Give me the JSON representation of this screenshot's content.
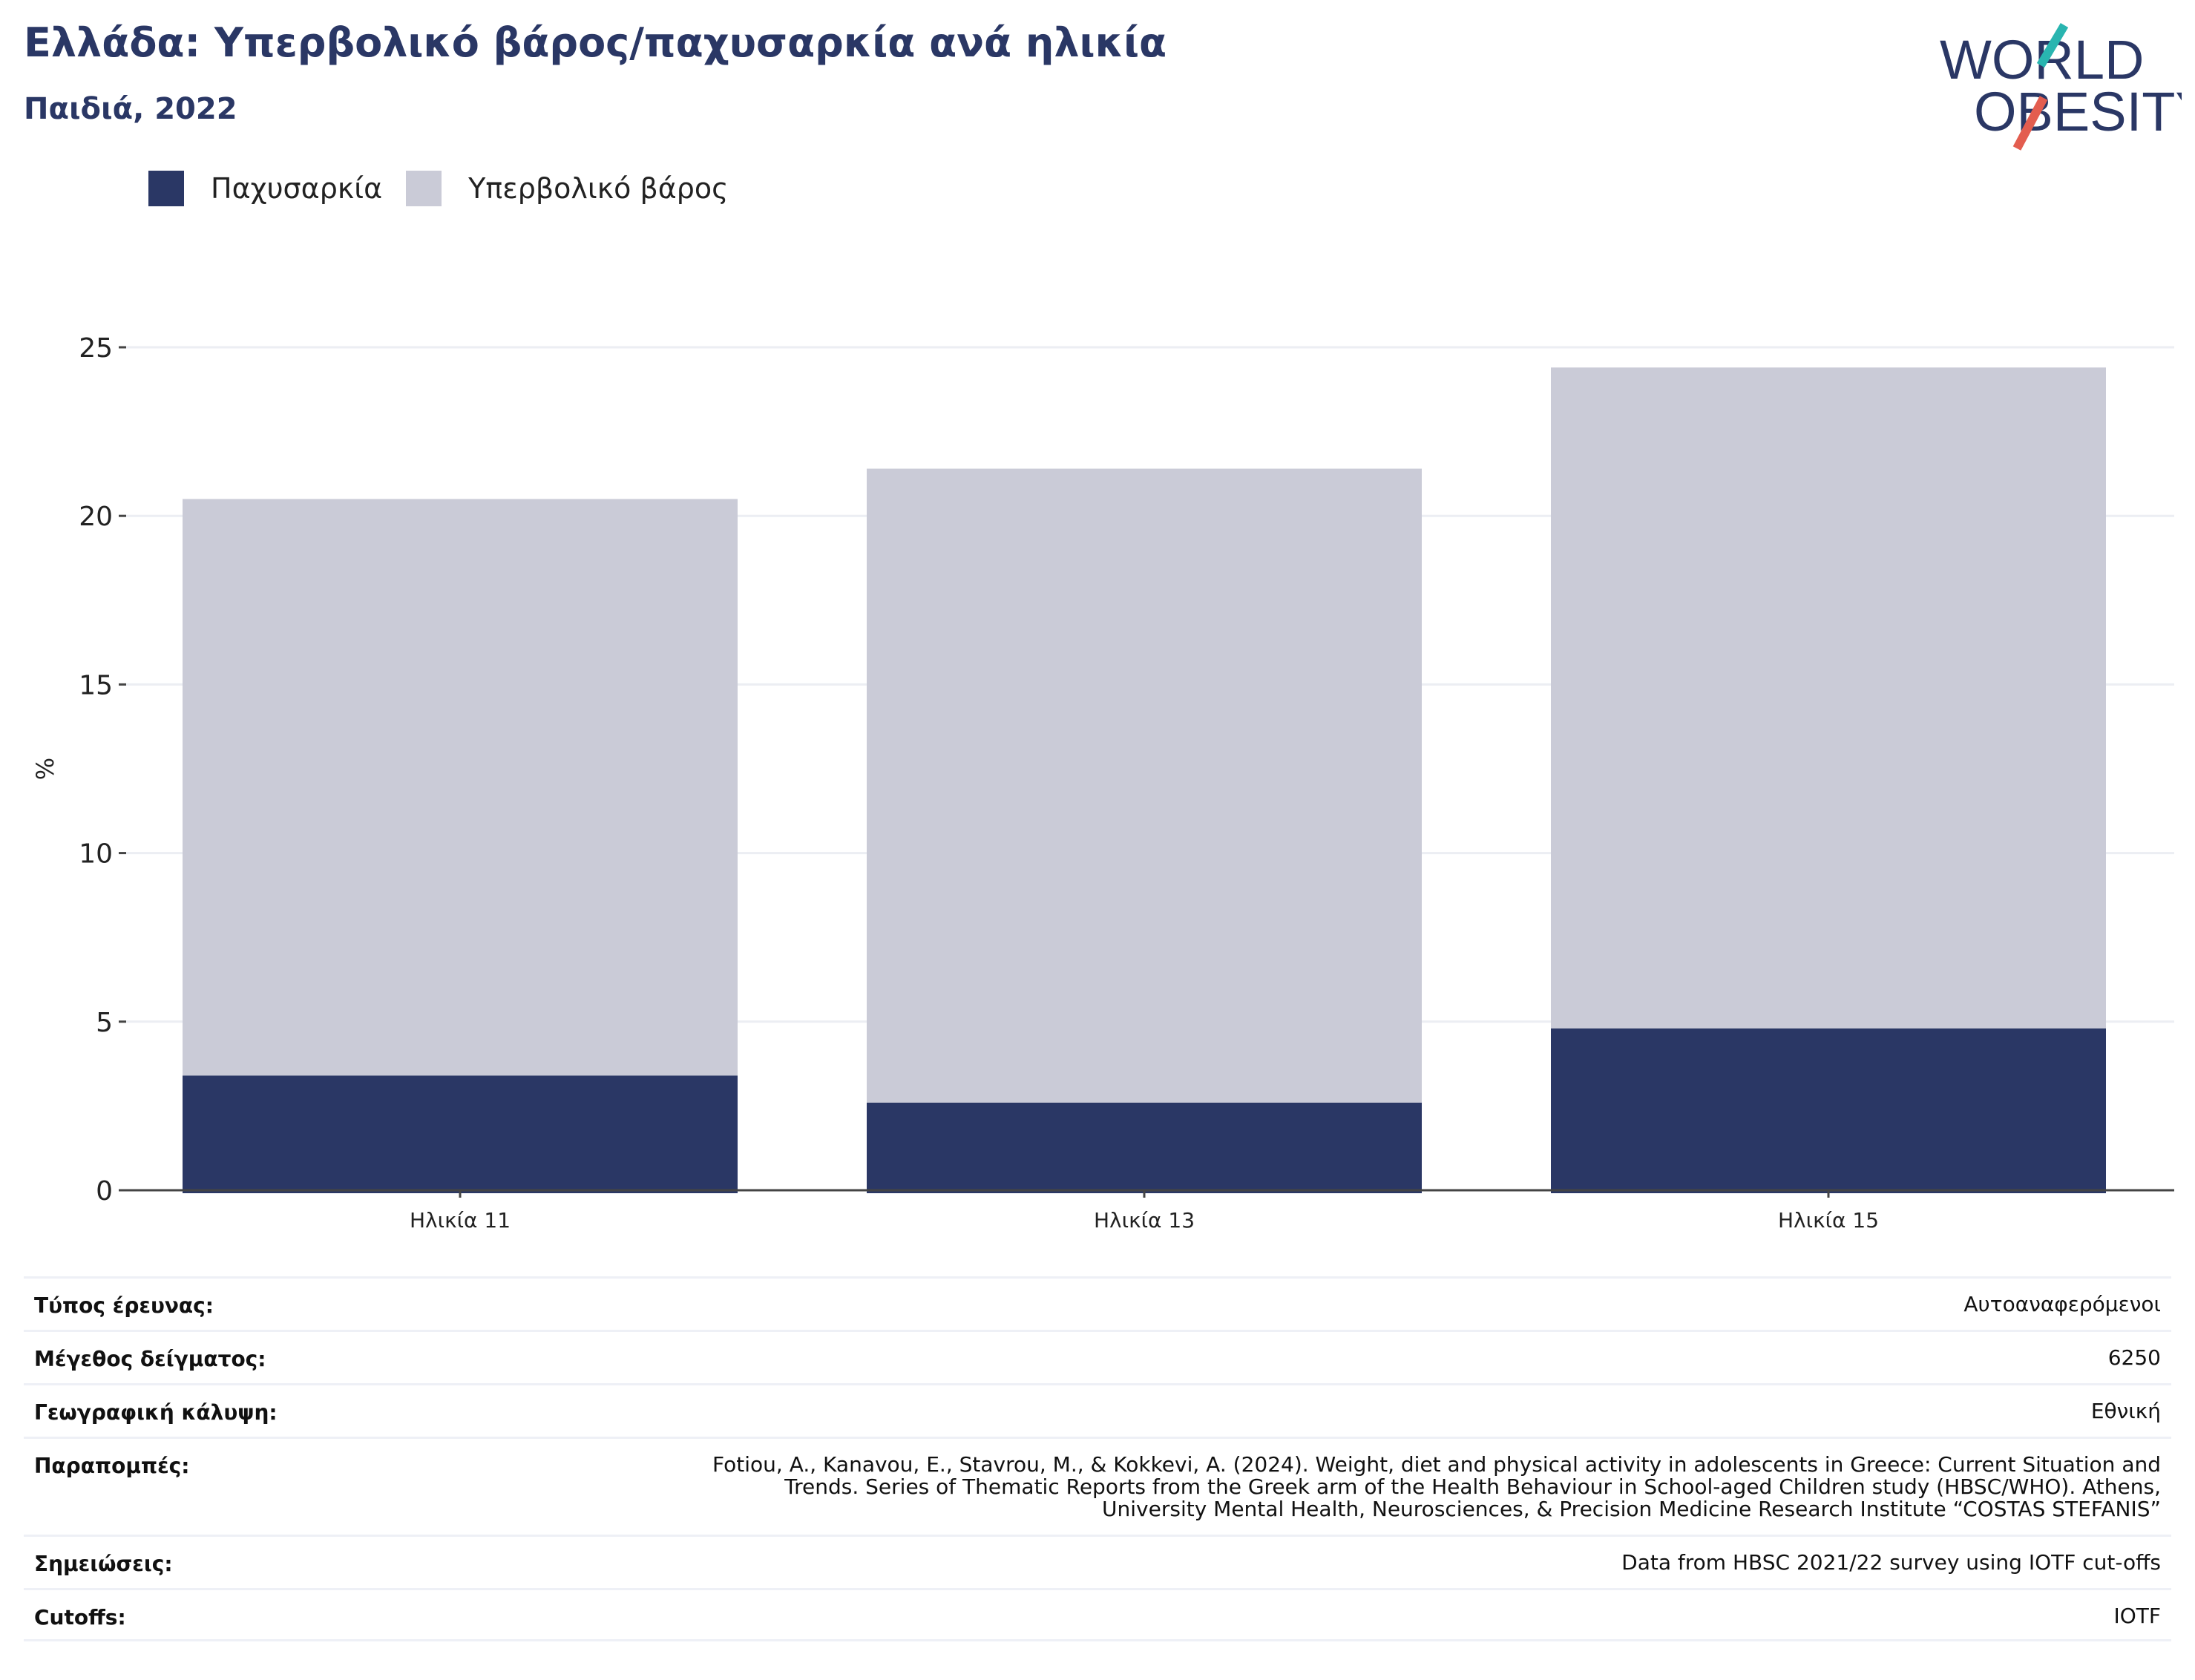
{
  "title": "Ελλάδα: Υπερβολικό βάρος/παχυσαρκία ανά ηλικία",
  "subtitle": "Παιδιά, 2022",
  "logo": {
    "line1": "WORLD",
    "line2": "OBESITY",
    "colors": {
      "text": "#2a3765",
      "slash_red": "#e35d4f",
      "slash_teal": "#29b5b0"
    }
  },
  "legend": [
    {
      "label": "Παχυσαρκία",
      "color": "#2a3765"
    },
    {
      "label": "Υπερβολικό βάρος",
      "color": "#cacbd7"
    }
  ],
  "chart_data": {
    "type": "bar",
    "stacked": true,
    "categories": [
      "Ηλικία 11",
      "Ηλικία 13",
      "Ηλικία 15"
    ],
    "series": [
      {
        "name": "Παχυσαρκία",
        "values": [
          3.4,
          2.6,
          4.8
        ],
        "color": "#2a3765"
      },
      {
        "name": "Υπερβολικό βάρος",
        "values": [
          17.1,
          18.8,
          19.6
        ],
        "color": "#cacbd7"
      }
    ],
    "ylabel": "%",
    "xlabel": "",
    "ylim": [
      0,
      25
    ],
    "yticks": [
      0,
      5,
      10,
      15,
      20,
      25
    ],
    "grid": true,
    "legend_position": "top-left"
  },
  "meta": [
    {
      "label": "Τύπος έρευνας:",
      "value": "Αυτοαναφερόμενοι"
    },
    {
      "label": "Μέγεθος δείγματος:",
      "value": "6250"
    },
    {
      "label": "Γεωγραφική κάλυψη:",
      "value": "Εθνική"
    },
    {
      "label": "Παραπομπές:",
      "value_lines": [
        "Fotiou, A., Kanavou, E., Stavrou, M., & Kokkevi, A. (2024). Weight, diet and physical activity in adolescents in Greece: Current Situation and",
        "Trends. Series of Thematic Reports from the Greek arm of the Health Behaviour in School-aged Children study (HBSC/WHO). Athens,",
        "University Mental Health, Neurosciences, & Precision Medicine Research Institute “COSTAS STEFANIS”"
      ]
    },
    {
      "label": "Σημειώσεις:",
      "value": "Data from HBSC 2021/22 survey using IOTF cut-offs"
    },
    {
      "label": "Cutoffs:",
      "value": "IOTF"
    }
  ]
}
